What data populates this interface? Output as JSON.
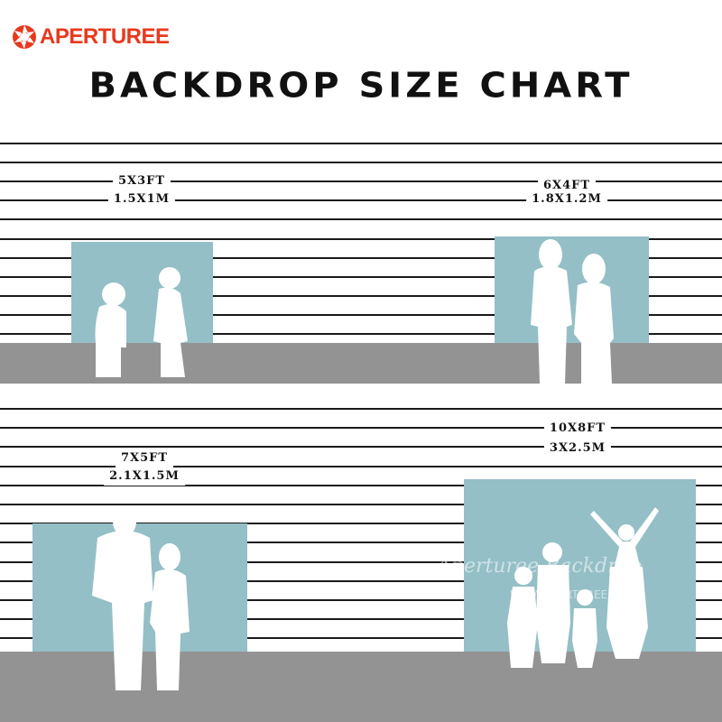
{
  "brand": {
    "name": "APERTUREE",
    "color": "#e8391d"
  },
  "title": "BACKDROP SIZE CHART",
  "sizes": [
    {
      "imperial": "5X3FT",
      "metric": "1.5X1M"
    },
    {
      "imperial": "6X4FT",
      "metric": "1.8X1.2M"
    },
    {
      "imperial": "7X5FT",
      "metric": "2.1X1.5M"
    },
    {
      "imperial": "10X8FT",
      "metric": "3X2.5M"
    }
  ],
  "watermark": {
    "script": "Aperturee Backdrop",
    "url": "WWW.APERTUREE.COM"
  },
  "colors": {
    "backdrop": "#94bfc6",
    "floor": "#939393",
    "lines": "#1a1a1a"
  }
}
